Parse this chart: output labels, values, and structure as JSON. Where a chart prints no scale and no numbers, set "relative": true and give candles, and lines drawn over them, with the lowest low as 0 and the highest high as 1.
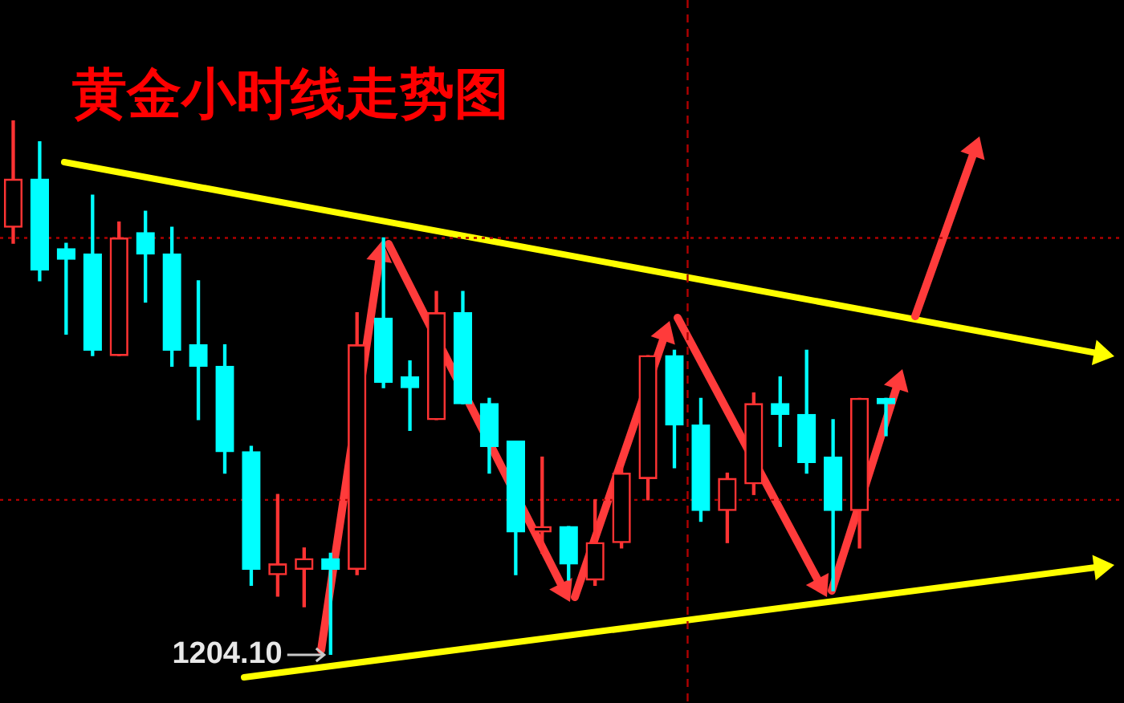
{
  "chart_data": {
    "type": "candlestick",
    "title": "黄金小时线走势图",
    "relative": true,
    "categories": [
      null,
      null,
      null,
      null,
      null,
      null,
      null,
      null,
      null,
      null,
      null,
      null,
      null,
      null,
      null,
      null,
      null,
      null,
      null,
      null,
      null,
      null,
      null,
      null,
      null,
      null,
      null,
      null,
      null,
      null,
      null,
      null,
      null,
      null
    ],
    "ohlc": [
      [
        0.8,
        1.0,
        0.77,
        0.89
      ],
      [
        0.89,
        0.96,
        0.7,
        0.72
      ],
      [
        0.76,
        0.77,
        0.6,
        0.74
      ],
      [
        0.75,
        0.86,
        0.56,
        0.57
      ],
      [
        0.56,
        0.81,
        0.56,
        0.78
      ],
      [
        0.79,
        0.83,
        0.66,
        0.75
      ],
      [
        0.75,
        0.8,
        0.54,
        0.57
      ],
      [
        0.58,
        0.7,
        0.44,
        0.54
      ],
      [
        0.54,
        0.58,
        0.34,
        0.38
      ],
      [
        0.38,
        0.39,
        0.13,
        0.16
      ],
      [
        0.15,
        0.3,
        0.11,
        0.17
      ],
      [
        0.16,
        0.2,
        0.09,
        0.18
      ],
      [
        0.18,
        0.19,
        0,
        0.16
      ],
      [
        0.16,
        0.64,
        0.15,
        0.58
      ],
      [
        0.63,
        0.78,
        0.5,
        0.51
      ],
      [
        0.52,
        0.55,
        0.42,
        0.5
      ],
      [
        0.44,
        0.68,
        0.44,
        0.64
      ],
      [
        0.64,
        0.68,
        0.47,
        0.47
      ],
      [
        0.47,
        0.48,
        0.34,
        0.39
      ],
      [
        0.4,
        0.4,
        0.15,
        0.23
      ],
      [
        0.23,
        0.37,
        0.19,
        0.24
      ],
      [
        0.24,
        0.24,
        0.14,
        0.17
      ],
      [
        0.14,
        0.29,
        0.13,
        0.21
      ],
      [
        0.21,
        0.35,
        0.2,
        0.34
      ],
      [
        0.33,
        0.56,
        0.29,
        0.56
      ],
      [
        0.56,
        0.57,
        0.35,
        0.43
      ],
      [
        0.43,
        0.48,
        0.25,
        0.27
      ],
      [
        0.27,
        0.34,
        0.21,
        0.33
      ],
      [
        0.32,
        0.49,
        0.3,
        0.47
      ],
      [
        0.47,
        0.52,
        0.39,
        0.45
      ],
      [
        0.45,
        0.57,
        0.34,
        0.36
      ],
      [
        0.37,
        0.44,
        0.12,
        0.27
      ],
      [
        0.27,
        0.48,
        0.2,
        0.48
      ],
      [
        0.48,
        0.48,
        0.41,
        0.47
      ]
    ],
    "colors": [
      "#ff3333",
      "#00ffff",
      "#00ffff",
      "#00ffff",
      "#ff3333",
      "#00ffff",
      "#00ffff",
      "#00ffff",
      "#00ffff",
      "#00ffff",
      "#ff3333",
      "#ff3333",
      "#00ffff",
      "#ff3333",
      "#00ffff",
      "#00ffff",
      "#ff3333",
      "#00ffff",
      "#00ffff",
      "#00ffff",
      "#ff3333",
      "#00ffff",
      "#ff3333",
      "#ff3333",
      "#ff3333",
      "#00ffff",
      "#00ffff",
      "#ff3333",
      "#ff3333",
      "#00ffff",
      "#00ffff",
      "#00ffff",
      "#ff3333",
      "#00ffff"
    ],
    "ref_lines": [
      {
        "axis": "y",
        "value": 0.78,
        "color": "#b00000",
        "line_style": "dotted"
      },
      {
        "axis": "y",
        "value": 0.29,
        "color": "#b00000",
        "line_style": "dotted"
      }
    ],
    "annotations": [
      "1204.10"
    ]
  }
}
